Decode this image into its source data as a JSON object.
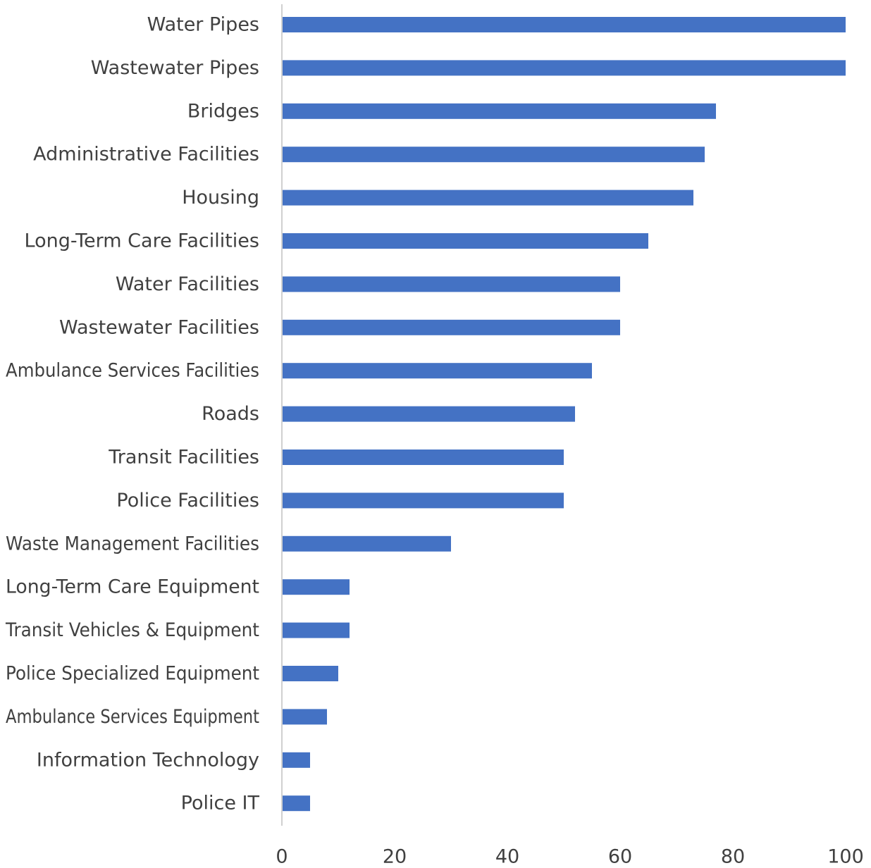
{
  "chart_data": {
    "type": "bar",
    "orientation": "horizontal",
    "title": "",
    "xlabel": "",
    "ylabel": "",
    "xlim": [
      0,
      100
    ],
    "x_ticks": [
      "0",
      "20",
      "40",
      "60",
      "80",
      "100"
    ],
    "grid": false,
    "legend": "none",
    "bar_color": "#4472C4",
    "categories": [
      "Water Pipes",
      "Wastewater Pipes",
      "Bridges",
      "Administrative Facilities",
      "Housing",
      "Long-Term Care Facilities",
      "Water Facilities",
      "Wastewater Facilities",
      "Ambulance Services Facilities",
      "Roads",
      "Transit Facilities",
      "Police Facilities",
      "Waste Management Facilities",
      "Long-Term Care Equipment",
      "Transit Vehicles & Equipment",
      "Police Specialized Equipment",
      "Ambulance Services Equipment",
      "Information Technology",
      "Police IT"
    ],
    "values": [
      100,
      100,
      77,
      75,
      73,
      65,
      60,
      60,
      55,
      52,
      50,
      50,
      30,
      12,
      12,
      10,
      8,
      5,
      5
    ]
  }
}
